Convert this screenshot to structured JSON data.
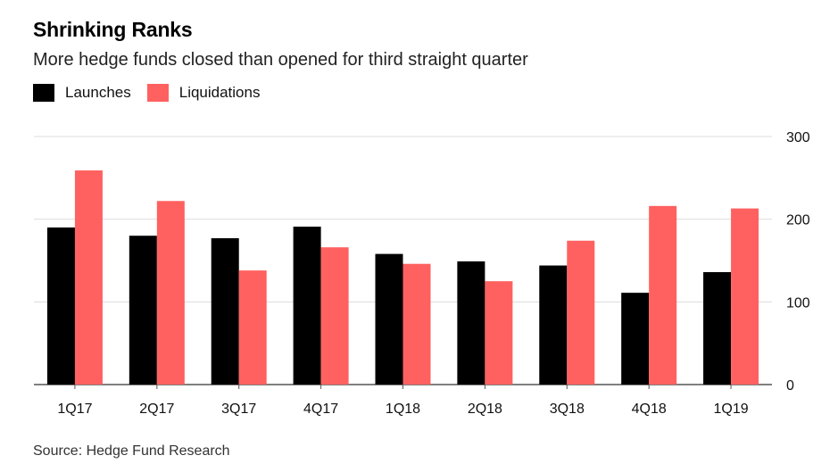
{
  "title": "Shrinking Ranks",
  "subtitle": "More hedge funds closed than opened for third straight quarter",
  "source": "Source: Hedge Fund Research",
  "colors": {
    "launches": "#000000",
    "liquidations": "#ff6160",
    "grid": "#dcdcdc",
    "axis": "#555555"
  },
  "chart_data": {
    "type": "bar",
    "categories": [
      "1Q17",
      "2Q17",
      "3Q17",
      "4Q17",
      "1Q18",
      "2Q18",
      "3Q18",
      "4Q18",
      "1Q19"
    ],
    "series": [
      {
        "name": "Launches",
        "values": [
          190,
          180,
          177,
          191,
          158,
          149,
          144,
          111,
          136
        ]
      },
      {
        "name": "Liquidations",
        "values": [
          259,
          222,
          138,
          166,
          146,
          125,
          174,
          216,
          213
        ]
      }
    ],
    "ylim": [
      0,
      300
    ],
    "yticks": [
      0,
      100,
      200,
      300
    ],
    "grid": true,
    "legend_position": "top-left"
  }
}
